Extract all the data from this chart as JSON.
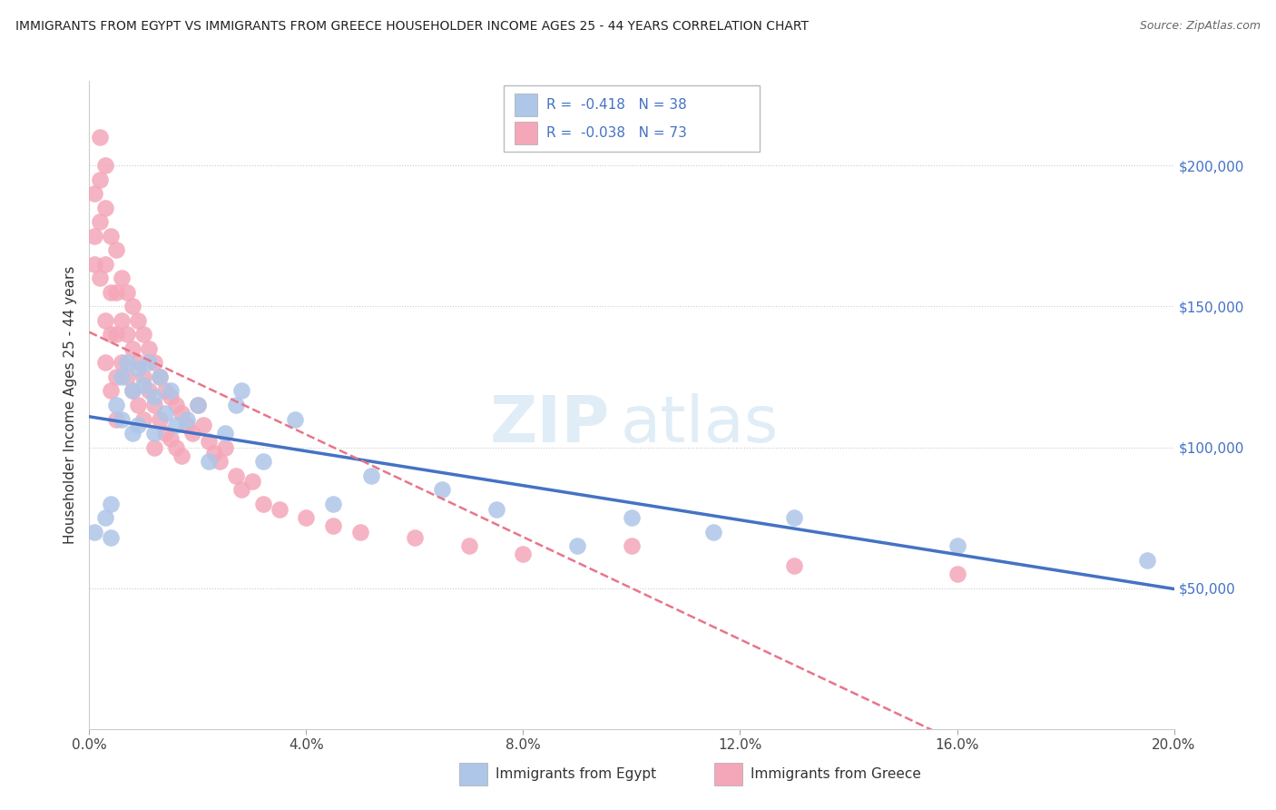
{
  "title": "IMMIGRANTS FROM EGYPT VS IMMIGRANTS FROM GREECE HOUSEHOLDER INCOME AGES 25 - 44 YEARS CORRELATION CHART",
  "source": "Source: ZipAtlas.com",
  "ylabel": "Householder Income Ages 25 - 44 years",
  "xlim": [
    0.0,
    0.2
  ],
  "ylim": [
    0,
    230000
  ],
  "yticks": [
    50000,
    100000,
    150000,
    200000
  ],
  "ytick_labels": [
    "$50,000",
    "$100,000",
    "$150,000",
    "$200,000"
  ],
  "r_egypt": -0.418,
  "n_egypt": 38,
  "r_greece": -0.038,
  "n_greece": 73,
  "color_egypt": "#aec6e8",
  "color_greece": "#f4a7b9",
  "line_color_egypt": "#4472c4",
  "line_color_greece": "#e8758a",
  "watermark_zip": "ZIP",
  "watermark_atlas": "atlas",
  "legend_label_egypt": "Immigrants from Egypt",
  "legend_label_greece": "Immigrants from Greece",
  "egypt_x": [
    0.001,
    0.003,
    0.004,
    0.004,
    0.005,
    0.006,
    0.006,
    0.007,
    0.008,
    0.008,
    0.009,
    0.009,
    0.01,
    0.011,
    0.012,
    0.012,
    0.013,
    0.014,
    0.015,
    0.016,
    0.018,
    0.02,
    0.022,
    0.025,
    0.027,
    0.028,
    0.032,
    0.038,
    0.045,
    0.052,
    0.065,
    0.075,
    0.09,
    0.1,
    0.115,
    0.13,
    0.16,
    0.195
  ],
  "egypt_y": [
    70000,
    75000,
    80000,
    68000,
    115000,
    125000,
    110000,
    130000,
    120000,
    105000,
    128000,
    108000,
    122000,
    130000,
    118000,
    105000,
    125000,
    112000,
    120000,
    108000,
    110000,
    115000,
    95000,
    105000,
    115000,
    120000,
    95000,
    110000,
    80000,
    90000,
    85000,
    78000,
    65000,
    75000,
    70000,
    75000,
    65000,
    60000
  ],
  "greece_x": [
    0.001,
    0.001,
    0.001,
    0.002,
    0.002,
    0.002,
    0.002,
    0.003,
    0.003,
    0.003,
    0.003,
    0.003,
    0.004,
    0.004,
    0.004,
    0.004,
    0.005,
    0.005,
    0.005,
    0.005,
    0.005,
    0.006,
    0.006,
    0.006,
    0.007,
    0.007,
    0.007,
    0.008,
    0.008,
    0.008,
    0.009,
    0.009,
    0.009,
    0.01,
    0.01,
    0.01,
    0.011,
    0.011,
    0.012,
    0.012,
    0.012,
    0.013,
    0.013,
    0.014,
    0.014,
    0.015,
    0.015,
    0.016,
    0.016,
    0.017,
    0.017,
    0.018,
    0.019,
    0.02,
    0.021,
    0.022,
    0.023,
    0.024,
    0.025,
    0.027,
    0.028,
    0.03,
    0.032,
    0.035,
    0.04,
    0.045,
    0.05,
    0.06,
    0.07,
    0.08,
    0.1,
    0.13,
    0.16
  ],
  "greece_y": [
    190000,
    175000,
    165000,
    210000,
    195000,
    180000,
    160000,
    200000,
    185000,
    165000,
    145000,
    130000,
    175000,
    155000,
    140000,
    120000,
    170000,
    155000,
    140000,
    125000,
    110000,
    160000,
    145000,
    130000,
    155000,
    140000,
    125000,
    150000,
    135000,
    120000,
    145000,
    130000,
    115000,
    140000,
    125000,
    110000,
    135000,
    120000,
    130000,
    115000,
    100000,
    125000,
    110000,
    120000,
    105000,
    118000,
    103000,
    115000,
    100000,
    112000,
    97000,
    108000,
    105000,
    115000,
    108000,
    102000,
    98000,
    95000,
    100000,
    90000,
    85000,
    88000,
    80000,
    78000,
    75000,
    72000,
    70000,
    68000,
    65000,
    62000,
    65000,
    58000,
    55000
  ]
}
